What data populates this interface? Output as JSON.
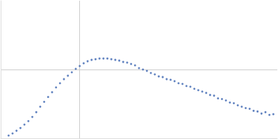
{
  "chart_data": {
    "type": "scatter",
    "x": [
      0.1,
      0.15,
      0.2,
      0.25,
      0.3,
      0.35,
      0.4,
      0.45,
      0.5,
      0.55,
      0.6,
      0.65,
      0.7,
      0.75,
      0.8,
      0.85,
      0.9,
      0.95,
      1.0,
      1.05,
      1.1,
      1.15,
      1.2,
      1.25,
      1.3,
      1.35,
      1.4,
      1.45,
      1.5,
      1.55,
      1.6,
      1.65,
      1.7,
      1.75,
      1.8,
      1.85,
      1.9,
      1.95,
      2.0,
      2.05,
      2.1,
      2.15,
      2.2,
      2.25,
      2.3,
      2.35,
      2.4,
      2.45,
      2.5,
      2.55,
      2.6,
      2.65,
      2.7,
      2.75,
      2.8,
      2.85,
      2.9,
      2.95,
      3.0,
      3.05,
      3.1,
      3.15,
      3.2,
      3.25,
      3.3,
      3.35,
      3.4,
      3.45
    ],
    "values": [
      0.04,
      0.07,
      0.11,
      0.15,
      0.2,
      0.25,
      0.31,
      0.38,
      0.46,
      0.53,
      0.6,
      0.67,
      0.74,
      0.8,
      0.86,
      0.91,
      0.96,
      1.01,
      1.05,
      1.09,
      1.12,
      1.14,
      1.15,
      1.16,
      1.16,
      1.16,
      1.15,
      1.14,
      1.13,
      1.11,
      1.1,
      1.08,
      1.06,
      1.02,
      1.0,
      0.98,
      0.95,
      0.93,
      0.9,
      0.89,
      0.86,
      0.85,
      0.83,
      0.8,
      0.79,
      0.76,
      0.75,
      0.72,
      0.7,
      0.68,
      0.66,
      0.63,
      0.62,
      0.58,
      0.57,
      0.55,
      0.52,
      0.51,
      0.48,
      0.46,
      0.44,
      0.43,
      0.4,
      0.39,
      0.36,
      0.38,
      0.34,
      0.35
    ],
    "color": "#3d67b1",
    "marker": "circle",
    "xlim": [
      0,
      3.5
    ],
    "ylim": [
      0,
      2
    ],
    "xticks": [
      1
    ],
    "yticks": [
      1
    ],
    "grid": true,
    "tick_labels": false
  }
}
